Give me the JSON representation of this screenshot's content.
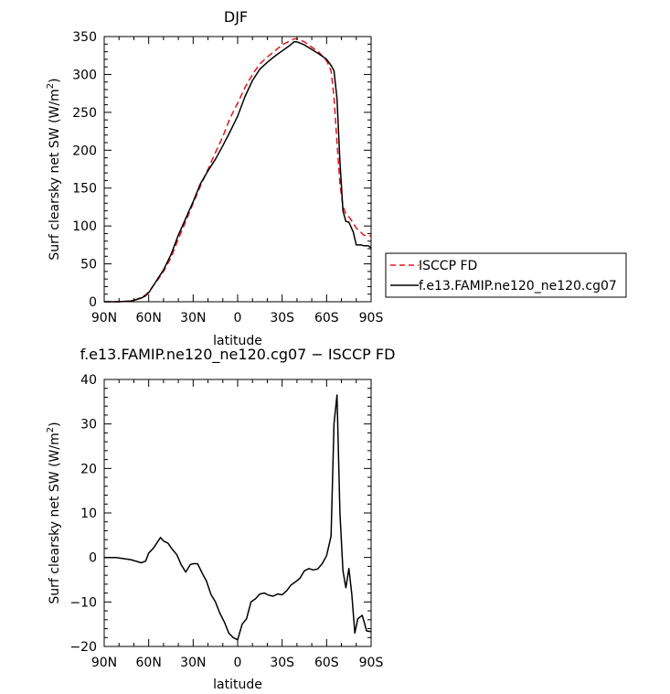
{
  "chart_data": [
    {
      "type": "line",
      "title": "DJF",
      "xlabel": "latitude",
      "ylabel": "Surf clearsky net SW (W/m²)",
      "ylabel_main": "Surf clearsky net SW (W/m",
      "ylabel_sup": "2",
      "ylabel_tail": ")",
      "xlim": [
        -90,
        90
      ],
      "ylim": [
        0,
        350
      ],
      "xticks": [
        -90,
        -60,
        -30,
        0,
        30,
        60,
        90
      ],
      "xtick_labels": [
        "90N",
        "60N",
        "30N",
        "0",
        "30S",
        "60S",
        "90S"
      ],
      "yticks": [
        0,
        50,
        100,
        150,
        200,
        250,
        300,
        350
      ],
      "ytick_labels": [
        "0",
        "50",
        "100",
        "150",
        "200",
        "250",
        "300",
        "350"
      ],
      "legend_position": "right",
      "series": [
        {
          "name": "ISCCP FD",
          "color": "#e8121c",
          "dash": "dashed",
          "x": [
            -90,
            -80,
            -72,
            -68,
            -65,
            -62,
            -60,
            -55,
            -50,
            -45,
            -40,
            -35,
            -30,
            -25,
            -20,
            -15,
            -10,
            -5,
            0,
            5,
            10,
            15,
            20,
            25,
            30,
            35,
            38,
            40,
            45,
            50,
            55,
            60,
            63,
            65,
            67,
            69,
            71,
            73,
            75,
            78,
            80,
            83,
            85,
            88,
            90
          ],
          "y": [
            0,
            0,
            1,
            3,
            6,
            9,
            13,
            26,
            40,
            58,
            83,
            106,
            130,
            153,
            175,
            197,
            218,
            243,
            262,
            283,
            300,
            314,
            323,
            331,
            339,
            344,
            347,
            347,
            343,
            336,
            329,
            318,
            305,
            270,
            210,
            155,
            126,
            116,
            112,
            104,
            97,
            92,
            88,
            87,
            87
          ]
        },
        {
          "name": "f.e13.FAMIP.ne120_ne120.cg07",
          "color": "#000000",
          "dash": "solid",
          "x": [
            -90,
            -80,
            -72,
            -68,
            -65,
            -62,
            -60,
            -55,
            -50,
            -45,
            -40,
            -35,
            -30,
            -25,
            -20,
            -15,
            -10,
            -5,
            0,
            5,
            10,
            15,
            20,
            25,
            30,
            35,
            38,
            40,
            45,
            50,
            55,
            60,
            63,
            65,
            67,
            69,
            71,
            73,
            75,
            78,
            80,
            83,
            85,
            88,
            90
          ],
          "y": [
            0,
            0,
            1,
            3,
            5,
            8,
            12,
            27,
            42,
            62,
            88,
            110,
            132,
            156,
            173,
            188,
            206,
            225,
            245,
            271,
            292,
            307,
            316,
            324,
            331,
            338,
            343,
            343,
            339,
            333,
            327,
            320,
            312,
            305,
            268,
            185,
            120,
            106,
            105,
            92,
            75,
            75,
            74,
            74,
            71
          ]
        }
      ]
    },
    {
      "type": "line",
      "title": "f.e13.FAMIP.ne120_ne120.cg07 − ISCCP FD",
      "xlabel": "latitude",
      "ylabel": "Surf clearsky net SW (W/m²)",
      "ylabel_main": "Surf clearsky net SW (W/m",
      "ylabel_sup": "2",
      "ylabel_tail": ")",
      "xlim": [
        -90,
        90
      ],
      "ylim": [
        -20,
        40
      ],
      "xticks": [
        -90,
        -60,
        -30,
        0,
        30,
        60,
        90
      ],
      "xtick_labels": [
        "90N",
        "60N",
        "30N",
        "0",
        "30S",
        "60S",
        "90S"
      ],
      "yticks": [
        -20,
        -10,
        0,
        10,
        20,
        30,
        40
      ],
      "ytick_labels": [
        "−20",
        "−10",
        "0",
        "10",
        "20",
        "30",
        "40"
      ],
      "series": [
        {
          "name": "f.e13.FAMIP.ne120_ne120.cg07 − ISCCP FD",
          "color": "#000000",
          "dash": "solid",
          "x": [
            -90,
            -82,
            -72,
            -67,
            -65,
            -62,
            -60,
            -57,
            -55,
            -52,
            -50,
            -47,
            -44,
            -41,
            -38,
            -35,
            -32,
            -30,
            -27,
            -24,
            -21,
            -18,
            -15,
            -12,
            -9,
            -6,
            -3,
            0,
            3,
            6,
            9,
            12,
            15,
            18,
            21,
            24,
            27,
            30,
            33,
            36,
            39,
            42,
            45,
            48,
            51,
            54,
            57,
            60,
            63,
            65,
            67,
            69,
            71,
            73,
            75,
            77,
            79,
            81,
            84,
            87,
            90
          ],
          "y": [
            0,
            0,
            -0.5,
            -1,
            -1.2,
            -0.8,
            1,
            2,
            3,
            4.5,
            3.7,
            3.2,
            1.8,
            0.6,
            -1.7,
            -3.3,
            -1.6,
            -1.4,
            -1.4,
            -3.5,
            -5.3,
            -8.3,
            -10,
            -12.5,
            -14.5,
            -17,
            -18,
            -18.5,
            -15,
            -13.8,
            -10,
            -9.3,
            -8.2,
            -8,
            -8.5,
            -8.7,
            -8.2,
            -8.4,
            -7.5,
            -6.2,
            -5.5,
            -4.7,
            -3,
            -2.5,
            -2.8,
            -2.6,
            -1.4,
            0.4,
            4.8,
            30,
            36.5,
            10,
            -3,
            -6.8,
            -2.5,
            -8.3,
            -17,
            -13.8,
            -13,
            -16.5,
            -16.7
          ]
        }
      ]
    }
  ],
  "legend": {
    "entries": [
      "ISCCP FD",
      "f.e13.FAMIP.ne120_ne120.cg07"
    ]
  }
}
